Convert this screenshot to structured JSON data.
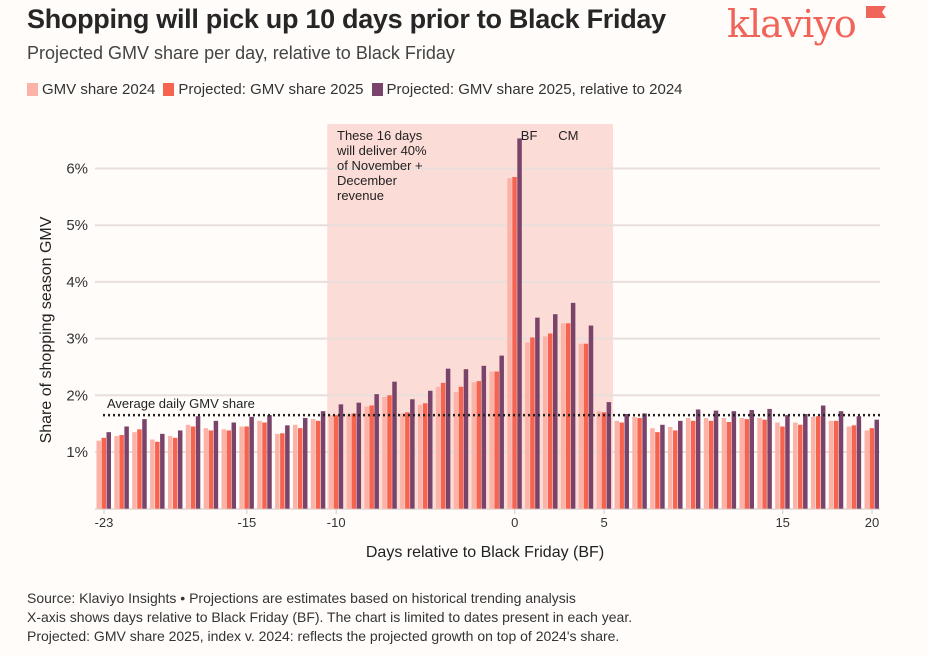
{
  "header": {
    "title": "Shopping will pick up 10 days prior to Black Friday",
    "subtitle": "Projected GMV share per day, relative to Black Friday",
    "logo_text": "klaviyo"
  },
  "legend": [
    {
      "label": "GMV share 2024",
      "color": "#fbb2a7"
    },
    {
      "label": "Projected: GMV share 2025",
      "color": "#f6634f"
    },
    {
      "label": "Projected: GMV share 2025, relative to 2024",
      "color": "#7a4369"
    }
  ],
  "footer": [
    "Source: Klaviyo Insights • Projections are estimates based on historical trending analysis",
    "X-axis shows days relative to Black Friday (BF). The chart is limited to dates present in each year.",
    "Projected: GMV share 2025, index v. 2024: reflects the projected growth on top of 2024's share."
  ],
  "chart_data": {
    "type": "bar",
    "xlabel": "Days relative to Black Friday (BF)",
    "ylabel": "Share of shopping season GMV",
    "ylim": [
      0,
      6.8
    ],
    "yticks": [
      "1%",
      "2%",
      "3%",
      "4%",
      "5%",
      "6%"
    ],
    "xticks": [
      "-23",
      "-15",
      "-10",
      "0",
      "5",
      "15",
      "20"
    ],
    "grid": "horizontal",
    "x": [
      -23,
      -22,
      -21,
      -20,
      -19,
      -18,
      -17,
      -16,
      -15,
      -14,
      -13,
      -12,
      -11,
      -10,
      -9,
      -8,
      -7,
      -6,
      -5,
      -4,
      -3,
      -2,
      -1,
      0,
      1,
      2,
      3,
      4,
      5,
      6,
      7,
      8,
      9,
      10,
      11,
      12,
      13,
      14,
      15,
      16,
      17,
      18,
      19,
      20
    ],
    "series": [
      {
        "name": "GMV share 2024",
        "values": [
          1.2,
          1.28,
          1.35,
          1.22,
          1.28,
          1.48,
          1.42,
          1.4,
          1.45,
          1.55,
          1.32,
          1.48,
          1.58,
          1.65,
          1.66,
          1.8,
          1.97,
          1.68,
          1.83,
          2.15,
          2.06,
          2.23,
          2.42,
          5.83,
          2.93,
          3.04,
          3.27,
          2.91,
          1.72,
          1.55,
          1.62,
          1.42,
          1.44,
          1.6,
          1.6,
          1.6,
          1.6,
          1.6,
          1.52,
          1.52,
          1.62,
          1.55,
          1.45,
          1.38
        ]
      },
      {
        "name": "Projected: GMV share 2025",
        "values": [
          1.25,
          1.3,
          1.4,
          1.18,
          1.25,
          1.45,
          1.38,
          1.38,
          1.45,
          1.52,
          1.33,
          1.42,
          1.55,
          1.65,
          1.68,
          1.82,
          2.0,
          1.7,
          1.86,
          2.22,
          2.15,
          2.25,
          2.42,
          5.85,
          3.02,
          3.09,
          3.27,
          2.91,
          1.7,
          1.52,
          1.6,
          1.35,
          1.38,
          1.55,
          1.55,
          1.53,
          1.58,
          1.57,
          1.45,
          1.48,
          1.63,
          1.55,
          1.47,
          1.42
        ]
      },
      {
        "name": "Projected: GMV share 2025, relative to 2024",
        "values": [
          1.35,
          1.45,
          1.58,
          1.32,
          1.38,
          1.63,
          1.55,
          1.52,
          1.62,
          1.65,
          1.47,
          1.6,
          1.72,
          1.84,
          1.87,
          2.02,
          2.24,
          1.93,
          2.08,
          2.47,
          2.46,
          2.52,
          2.7,
          6.53,
          3.37,
          3.43,
          3.63,
          3.23,
          1.88,
          1.67,
          1.68,
          1.48,
          1.55,
          1.75,
          1.73,
          1.72,
          1.74,
          1.76,
          1.65,
          1.67,
          1.82,
          1.72,
          1.63,
          1.57
        ]
      }
    ],
    "reference_line": {
      "value": 1.65,
      "label": "Average daily GMV share"
    },
    "highlight": {
      "from": -10,
      "to": 5,
      "label": "These 16 days will deliver 40% of November + December revenue",
      "label_lines": [
        "These 16 days",
        "will deliver 40%",
        "of November +",
        "December",
        "revenue"
      ]
    },
    "annotations": [
      {
        "x": 0,
        "label": "BF"
      },
      {
        "x": 3,
        "label": "CM"
      }
    ]
  }
}
